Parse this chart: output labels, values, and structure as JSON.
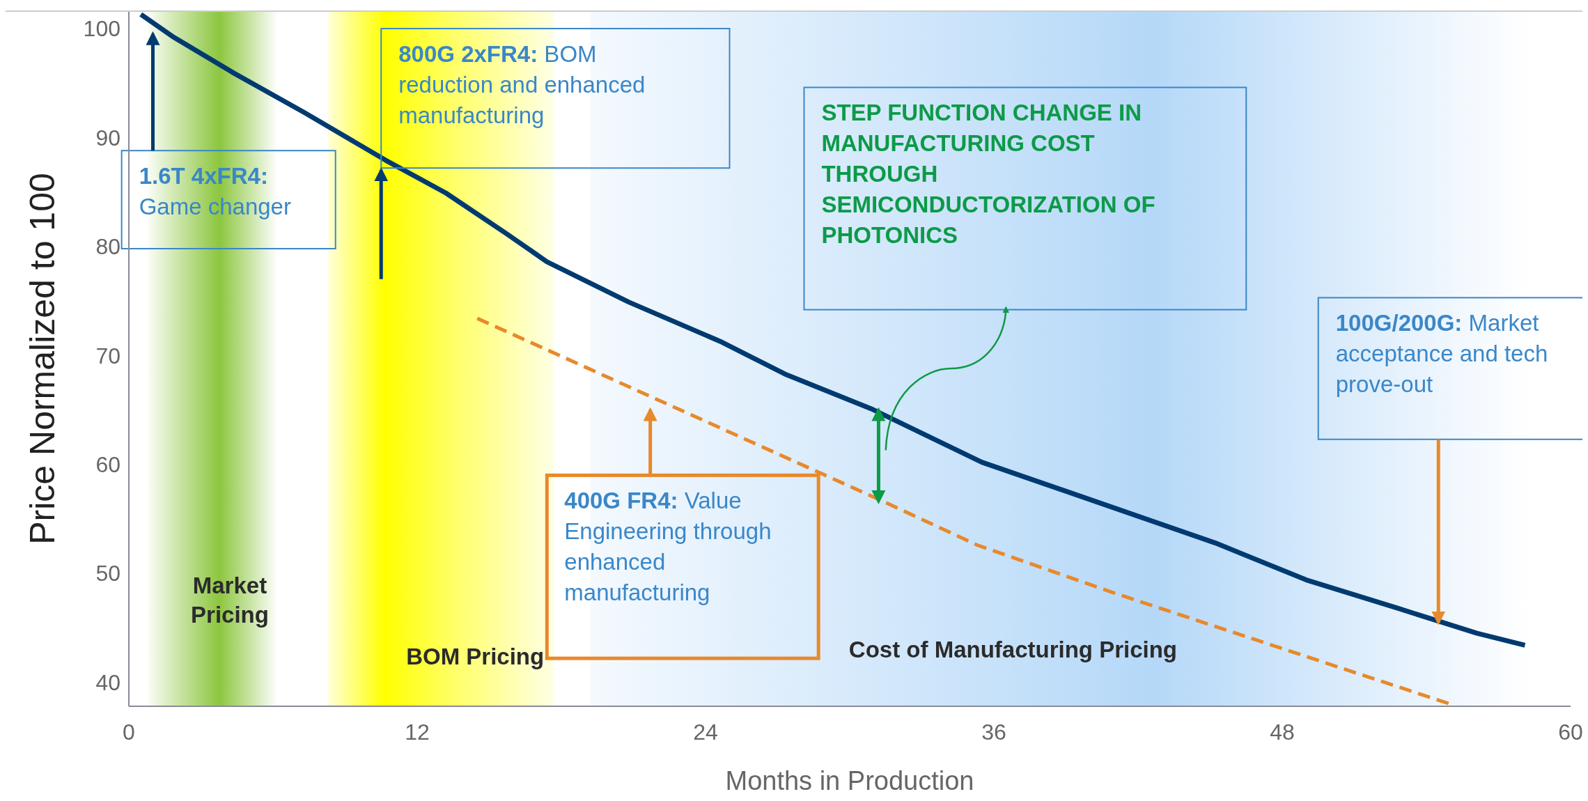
{
  "chart_data": {
    "type": "line",
    "xlabel": "Months in Production",
    "ylabel": "Price Normalized to 100",
    "xlim": [
      0,
      60
    ],
    "ylim": [
      37.8,
      101.6
    ],
    "xticks": [
      0,
      12,
      24,
      36,
      48,
      60
    ],
    "yticks": [
      40,
      50,
      60,
      70,
      80,
      90,
      100
    ],
    "grid": false,
    "series": [
      {
        "color": "#003a70",
        "line_style": "solid",
        "x": [
          0.5,
          1.8,
          4.3,
          7.3,
          10.7,
          13.2,
          15.7,
          17.4,
          20.8,
          24.6,
          27.3,
          30.9,
          35.5,
          39.7,
          45.2,
          49.0,
          52.8,
          56.1,
          58.1
        ],
        "values": [
          101.3,
          99.3,
          96.0,
          92.3,
          87.9,
          84.9,
          81.2,
          78.6,
          74.9,
          71.3,
          68.3,
          65.1,
          60.2,
          57.0,
          52.8,
          49.4,
          46.8,
          44.5,
          43.4
        ]
      },
      {
        "color": "#e8892b",
        "line_style": "dashed",
        "x": [
          14.5,
          31.3,
          35.3,
          41.0,
          55.0
        ],
        "values": [
          73.4,
          56.7,
          52.6,
          48.2,
          38.0
        ]
      }
    ],
    "bands": [
      {
        "axis": "x",
        "from": 0.8,
        "to": 6.2,
        "label": "Market Pricing",
        "color": "#8cc63f"
      },
      {
        "axis": "x",
        "from": 8.3,
        "to": 17.7,
        "label": "BOM Pricing",
        "color": "#ffff00"
      },
      {
        "axis": "x",
        "from": 19.2,
        "to": 58.3,
        "label": "Cost of Manufacturing Pricing",
        "color": "#b5d8f8"
      }
    ],
    "annotations": [
      "1.6T 4xFR4: Game changer",
      "800G 2xFR4: BOM reduction and enhanced manufacturing",
      "400G FR4: Value Engineering through enhanced manufacturing",
      "STEP FUNCTION CHANGE IN MANUFACTURING COST THROUGH SEMICONDUCTORIZATION OF PHOTONICS",
      "100G/200G:  Market acceptance and tech prove-out"
    ]
  }
}
